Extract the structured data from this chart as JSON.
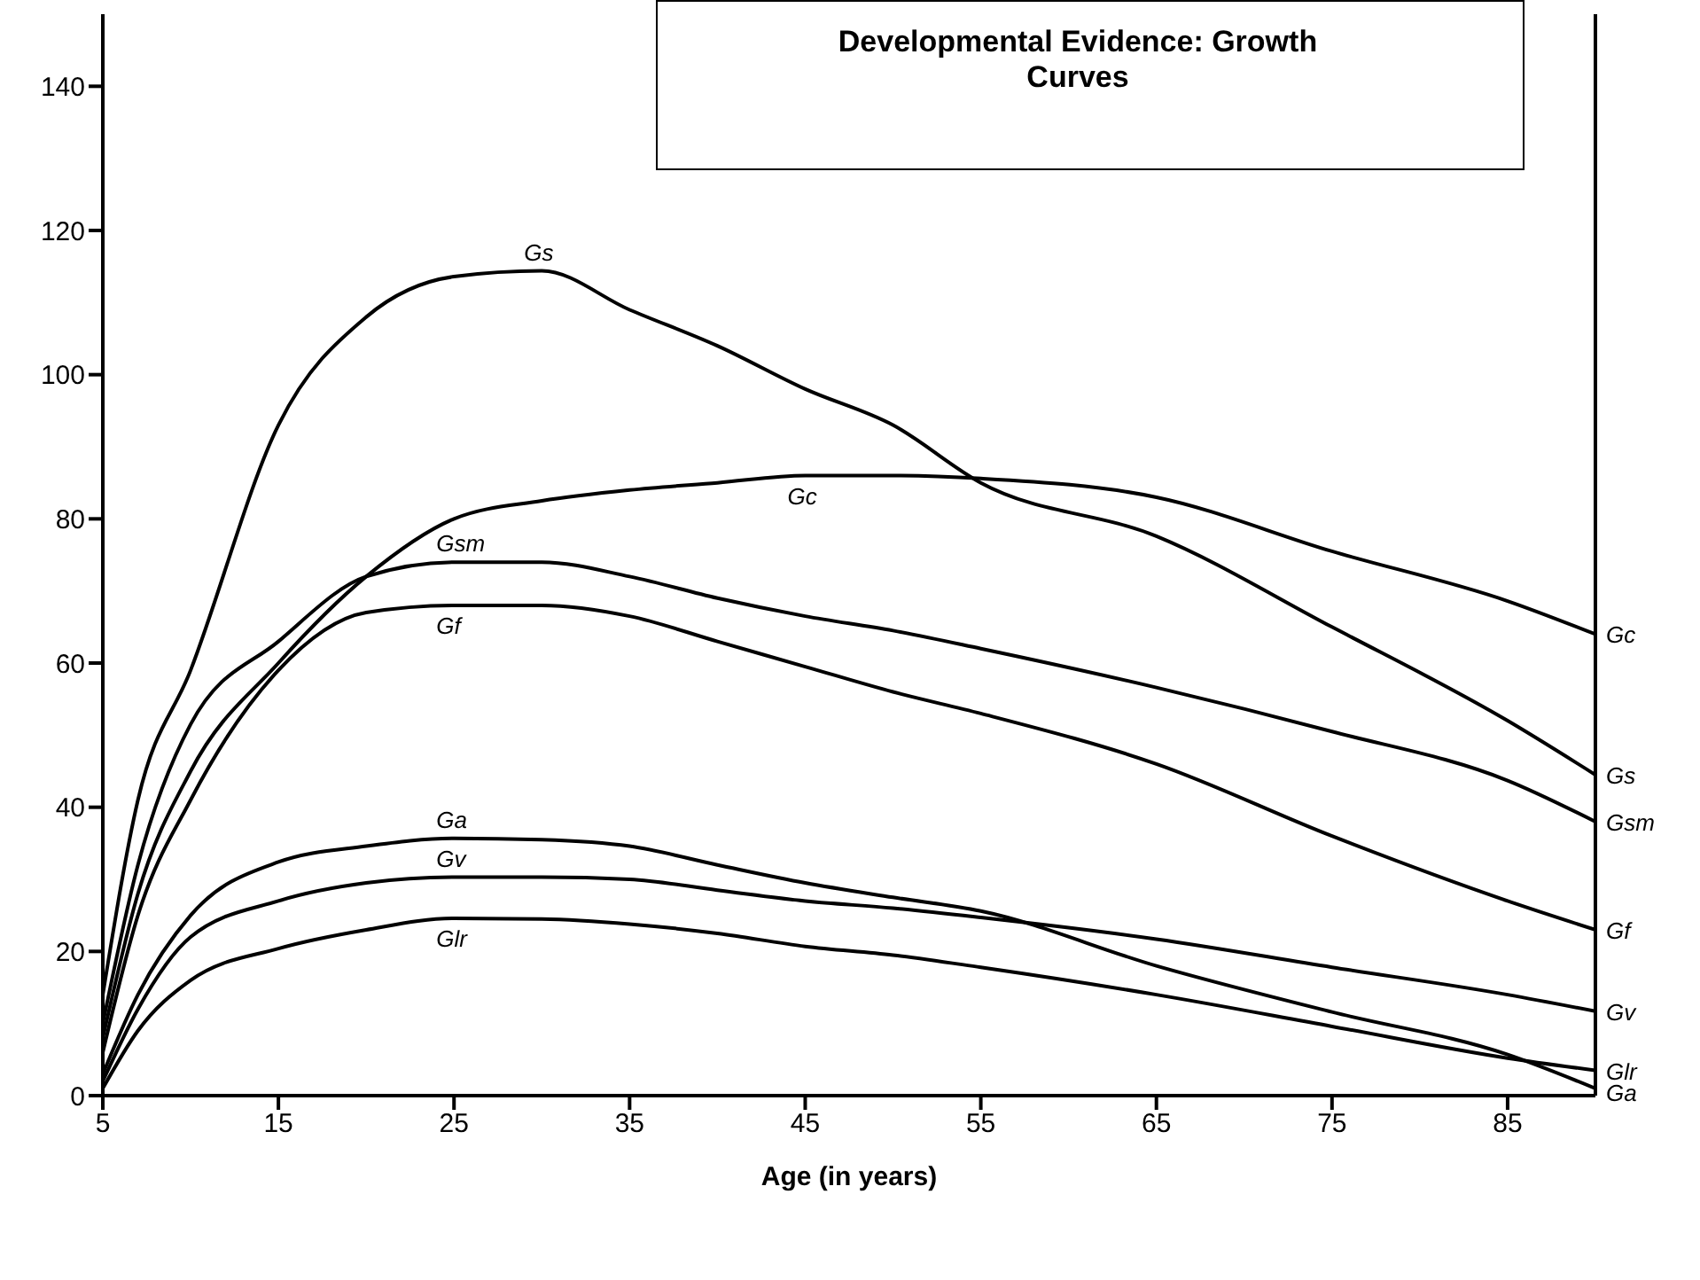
{
  "chart_data": {
    "type": "line",
    "title": "Developmental Evidence:  Growth Curves",
    "xlabel": "Age (in years)",
    "x": [
      5,
      7,
      10,
      15,
      20,
      25,
      30,
      35,
      40,
      45,
      50,
      55,
      65,
      75,
      85,
      90
    ],
    "series": [
      {
        "name": "Gs",
        "color": "#000000",
        "values": [
          14,
          41,
          59,
          93,
          108,
          113.6,
          114.4,
          109,
          104,
          98,
          93,
          85,
          77.6,
          65,
          52,
          44.5
        ]
      },
      {
        "name": "Gc",
        "color": "#000000",
        "values": [
          8,
          28,
          45,
          60,
          72,
          80,
          82.5,
          84,
          85,
          86,
          86,
          85.6,
          83,
          75.5,
          68.6,
          64
        ]
      },
      {
        "name": "Gsm",
        "color": "#000000",
        "values": [
          10,
          32,
          51.5,
          63,
          72,
          74,
          74,
          72,
          69,
          66.5,
          64.5,
          62,
          56.6,
          50.5,
          43.7,
          38
        ]
      },
      {
        "name": "Gf",
        "color": "#000000",
        "values": [
          6,
          25,
          41,
          59,
          67,
          68,
          68,
          66.5,
          63,
          59.5,
          56,
          53,
          46,
          36,
          27,
          23
        ]
      },
      {
        "name": "Gv",
        "color": "#000000",
        "values": [
          2,
          12,
          22,
          27,
          29.5,
          30.3,
          30.3,
          30,
          28.5,
          27,
          26,
          24.7,
          21.7,
          17.8,
          14,
          11.7
        ]
      },
      {
        "name": "Glr",
        "color": "#000000",
        "values": [
          1,
          9,
          16,
          20.4,
          23,
          24.6,
          24.5,
          23.8,
          22.5,
          20.7,
          19.5,
          17.8,
          14,
          9.6,
          5.2,
          3.5
        ]
      },
      {
        "name": "Ga",
        "color": "#000000",
        "values": [
          3,
          14,
          25,
          32.4,
          34.6,
          35.7,
          35.5,
          34.6,
          32,
          29.5,
          27.5,
          25.6,
          18,
          11.6,
          5.7,
          1
        ]
      }
    ],
    "xlim": [
      5,
      90
    ],
    "xticks": [
      5,
      15,
      25,
      35,
      45,
      55,
      65,
      75,
      85
    ],
    "ylim": [
      0,
      150
    ],
    "yticks": [
      0,
      20,
      40,
      60,
      80,
      100,
      120,
      140
    ],
    "grid": false,
    "legend": false,
    "marker": "none",
    "line_style": "solid"
  }
}
